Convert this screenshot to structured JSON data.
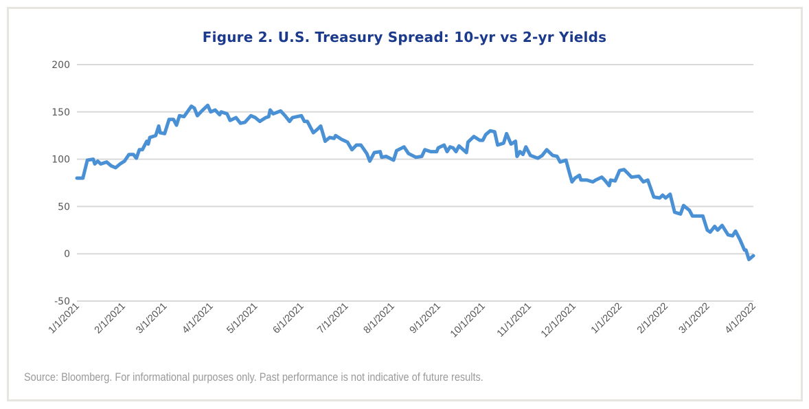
{
  "chart_data": {
    "type": "line",
    "title": "Figure 2. U.S. Treasury Spread: 10-yr vs 2-yr Yields",
    "xlabel": "",
    "ylabel": "",
    "ylim": [
      -50,
      200
    ],
    "yticks": [
      200,
      150,
      100,
      50,
      0,
      -50
    ],
    "xlim": [
      "2021-01-01",
      "2022-04-01"
    ],
    "xtick_labels": [
      "1/1/2021",
      "2/1/2021",
      "3/1/2021",
      "4/1/2021",
      "5/1/2021",
      "6/1/2021",
      "7/1/2021",
      "8/1/2021",
      "9/1/2021",
      "10/1/2021",
      "11/1/2021",
      "12/1/2021",
      "1/1/2022",
      "2/1/2022",
      "3/1/2022",
      "4/1/2022"
    ],
    "xtick_dates": [
      "2021-01-01",
      "2021-02-01",
      "2021-03-01",
      "2021-04-01",
      "2021-05-01",
      "2021-06-01",
      "2021-07-01",
      "2021-08-01",
      "2021-09-01",
      "2021-10-01",
      "2021-11-01",
      "2021-12-01",
      "2022-01-01",
      "2022-02-01",
      "2022-03-01",
      "2022-04-01"
    ],
    "grid": "horizontal",
    "line_color": "#4a90d4",
    "grid_color": "#d9d9d9",
    "series": [
      {
        "points": [
          [
            "2021-01-01",
            80
          ],
          [
            "2021-01-05",
            80
          ],
          [
            "2021-01-08",
            99
          ],
          [
            "2021-01-12",
            100
          ],
          [
            "2021-01-13",
            95
          ],
          [
            "2021-01-15",
            98
          ],
          [
            "2021-01-17",
            95
          ],
          [
            "2021-01-21",
            97
          ],
          [
            "2021-01-24",
            93
          ],
          [
            "2021-01-27",
            91
          ],
          [
            "2021-01-30",
            95
          ],
          [
            "2021-02-02",
            98
          ],
          [
            "2021-02-05",
            105
          ],
          [
            "2021-02-08",
            105
          ],
          [
            "2021-02-10",
            101
          ],
          [
            "2021-02-12",
            110
          ],
          [
            "2021-02-14",
            110
          ],
          [
            "2021-02-17",
            119
          ],
          [
            "2021-02-18",
            116
          ],
          [
            "2021-02-19",
            123
          ],
          [
            "2021-02-23",
            125
          ],
          [
            "2021-02-25",
            135
          ],
          [
            "2021-02-26",
            128
          ],
          [
            "2021-03-01",
            127
          ],
          [
            "2021-03-04",
            142
          ],
          [
            "2021-03-07",
            142
          ],
          [
            "2021-03-09",
            136
          ],
          [
            "2021-03-11",
            146
          ],
          [
            "2021-03-14",
            145
          ],
          [
            "2021-03-19",
            156
          ],
          [
            "2021-03-21",
            154
          ],
          [
            "2021-03-23",
            146
          ],
          [
            "2021-03-26",
            151
          ],
          [
            "2021-03-30",
            157
          ],
          [
            "2021-04-01",
            150
          ],
          [
            "2021-04-04",
            152
          ],
          [
            "2021-04-07",
            147
          ],
          [
            "2021-04-08",
            150
          ],
          [
            "2021-04-12",
            148
          ],
          [
            "2021-04-14",
            141
          ],
          [
            "2021-04-18",
            144
          ],
          [
            "2021-04-21",
            138
          ],
          [
            "2021-04-24",
            139
          ],
          [
            "2021-04-28",
            146
          ],
          [
            "2021-05-01",
            144
          ],
          [
            "2021-05-04",
            140
          ],
          [
            "2021-05-08",
            144
          ],
          [
            "2021-05-10",
            145
          ],
          [
            "2021-05-11",
            152
          ],
          [
            "2021-05-13",
            148
          ],
          [
            "2021-05-18",
            151
          ],
          [
            "2021-05-21",
            146
          ],
          [
            "2021-05-24",
            140
          ],
          [
            "2021-05-26",
            144
          ],
          [
            "2021-06-01",
            146
          ],
          [
            "2021-06-03",
            140
          ],
          [
            "2021-06-05",
            140
          ],
          [
            "2021-06-09",
            128
          ],
          [
            "2021-06-12",
            132
          ],
          [
            "2021-06-14",
            135
          ],
          [
            "2021-06-17",
            119
          ],
          [
            "2021-06-20",
            123
          ],
          [
            "2021-06-23",
            122
          ],
          [
            "2021-06-24",
            125
          ],
          [
            "2021-06-28",
            121
          ],
          [
            "2021-07-02",
            118
          ],
          [
            "2021-07-05",
            110
          ],
          [
            "2021-07-08",
            115
          ],
          [
            "2021-07-11",
            115
          ],
          [
            "2021-07-15",
            106
          ],
          [
            "2021-07-17",
            98
          ],
          [
            "2021-07-20",
            107
          ],
          [
            "2021-07-24",
            108
          ],
          [
            "2021-07-25",
            102
          ],
          [
            "2021-07-28",
            103
          ],
          [
            "2021-08-02",
            99
          ],
          [
            "2021-08-04",
            109
          ],
          [
            "2021-08-09",
            113
          ],
          [
            "2021-08-12",
            106
          ],
          [
            "2021-08-17",
            102
          ],
          [
            "2021-08-21",
            103
          ],
          [
            "2021-08-23",
            110
          ],
          [
            "2021-08-27",
            108
          ],
          [
            "2021-08-31",
            108
          ],
          [
            "2021-09-01",
            112
          ],
          [
            "2021-09-05",
            115
          ],
          [
            "2021-09-07",
            108
          ],
          [
            "2021-09-09",
            113
          ],
          [
            "2021-09-11",
            112
          ],
          [
            "2021-09-13",
            108
          ],
          [
            "2021-09-15",
            114
          ],
          [
            "2021-09-20",
            107
          ],
          [
            "2021-09-21",
            118
          ],
          [
            "2021-09-25",
            124
          ],
          [
            "2021-09-29",
            120
          ],
          [
            "2021-10-01",
            120
          ],
          [
            "2021-10-03",
            126
          ],
          [
            "2021-10-06",
            130
          ],
          [
            "2021-10-09",
            129
          ],
          [
            "2021-10-11",
            115
          ],
          [
            "2021-10-15",
            117
          ],
          [
            "2021-10-17",
            127
          ],
          [
            "2021-10-20",
            116
          ],
          [
            "2021-10-23",
            119
          ],
          [
            "2021-10-24",
            103
          ],
          [
            "2021-10-26",
            108
          ],
          [
            "2021-10-28",
            105
          ],
          [
            "2021-10-30",
            113
          ],
          [
            "2021-11-02",
            104
          ],
          [
            "2021-11-07",
            101
          ],
          [
            "2021-11-10",
            104
          ],
          [
            "2021-11-13",
            110
          ],
          [
            "2021-11-17",
            104
          ],
          [
            "2021-11-20",
            103
          ],
          [
            "2021-11-22",
            97
          ],
          [
            "2021-11-26",
            99
          ],
          [
            "2021-11-28",
            87
          ],
          [
            "2021-11-30",
            76
          ],
          [
            "2021-12-02",
            80
          ],
          [
            "2021-12-05",
            83
          ],
          [
            "2021-12-06",
            78
          ],
          [
            "2021-12-10",
            78
          ],
          [
            "2021-12-14",
            76
          ],
          [
            "2021-12-16",
            78
          ],
          [
            "2021-12-20",
            81
          ],
          [
            "2021-12-22",
            78
          ],
          [
            "2021-12-25",
            72
          ],
          [
            "2021-12-26",
            78
          ],
          [
            "2021-12-29",
            77
          ],
          [
            "2022-01-01",
            88
          ],
          [
            "2022-01-04",
            89
          ],
          [
            "2022-01-06",
            86
          ],
          [
            "2022-01-09",
            81
          ],
          [
            "2022-01-14",
            82
          ],
          [
            "2022-01-17",
            76
          ],
          [
            "2022-01-20",
            78
          ],
          [
            "2022-01-24",
            60
          ],
          [
            "2022-01-28",
            59
          ],
          [
            "2022-01-30",
            62
          ],
          [
            "2022-02-01",
            59
          ],
          [
            "2022-02-04",
            63
          ],
          [
            "2022-02-07",
            44
          ],
          [
            "2022-02-11",
            42
          ],
          [
            "2022-02-13",
            51
          ],
          [
            "2022-02-17",
            46
          ],
          [
            "2022-02-19",
            40
          ],
          [
            "2022-02-26",
            40
          ],
          [
            "2022-03-01",
            25
          ],
          [
            "2022-03-03",
            23
          ],
          [
            "2022-03-06",
            29
          ],
          [
            "2022-03-08",
            25
          ],
          [
            "2022-03-11",
            30
          ],
          [
            "2022-03-15",
            20
          ],
          [
            "2022-03-18",
            19
          ],
          [
            "2022-03-20",
            24
          ],
          [
            "2022-03-23",
            15
          ],
          [
            "2022-03-26",
            4
          ],
          [
            "2022-03-27",
            4
          ],
          [
            "2022-03-29",
            -6
          ],
          [
            "2022-04-01",
            -2
          ]
        ]
      }
    ]
  },
  "footer": {
    "source": "Source: Bloomberg. For informational purposes only.  Past performance is not indicative of  future results."
  }
}
